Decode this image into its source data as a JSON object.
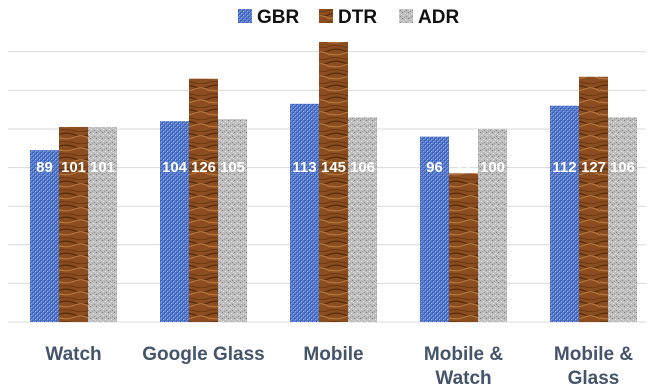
{
  "chart_data": {
    "type": "bar",
    "categories": [
      "Watch",
      "Google Glass",
      "Mobile",
      "Mobile & Watch",
      "Mobile & Glass"
    ],
    "category_lines": [
      [
        "Watch"
      ],
      [
        "Google Glass"
      ],
      [
        "Mobile"
      ],
      [
        "Mobile &",
        "Watch"
      ],
      [
        "Mobile &",
        "Glass"
      ]
    ],
    "series": [
      {
        "name": "GBR",
        "values": [
          89,
          104,
          113,
          96,
          112
        ],
        "color": "#4a6fc4",
        "pattern": "blue-weave"
      },
      {
        "name": "DTR",
        "values": [
          101,
          126,
          145,
          77,
          127
        ],
        "color": "#8a4a1c",
        "pattern": "wood-grain"
      },
      {
        "name": "ADR",
        "values": [
          101,
          105,
          106,
          100,
          106
        ],
        "color": "#b4b4b4",
        "pattern": "granite"
      }
    ],
    "ylim": [
      0,
      145
    ],
    "grid": true,
    "legend_position": "top-center",
    "colors": {
      "category_label": "#44546a",
      "grid": "#d9d9d9",
      "value_label": "#ffffff"
    }
  }
}
